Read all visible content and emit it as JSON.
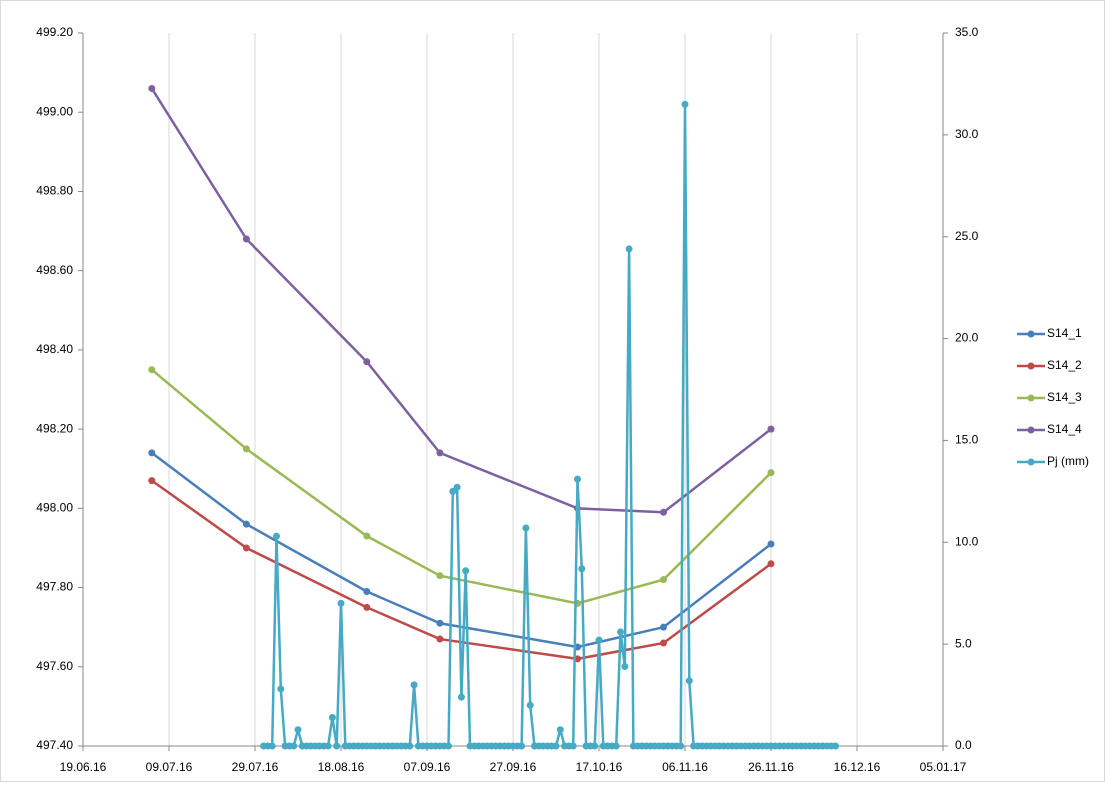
{
  "chart_data": {
    "type": "line",
    "xlim": [
      "2016-06-19",
      "2017-01-05"
    ],
    "xticks": [
      {
        "value": "2016-06-19",
        "label": "19.06.16"
      },
      {
        "value": "2016-07-09",
        "label": "09.07.16"
      },
      {
        "value": "2016-07-29",
        "label": "29.07.16"
      },
      {
        "value": "2016-08-18",
        "label": "18.08.16"
      },
      {
        "value": "2016-09-07",
        "label": "07.09.16"
      },
      {
        "value": "2016-09-27",
        "label": "27.09.16"
      },
      {
        "value": "2016-10-17",
        "label": "17.10.16"
      },
      {
        "value": "2016-11-06",
        "label": "06.11.16"
      },
      {
        "value": "2016-11-26",
        "label": "26.11.16"
      },
      {
        "value": "2016-12-16",
        "label": "16.12.16"
      },
      {
        "value": "2017-01-05",
        "label": "05.01.17"
      }
    ],
    "ylim": [
      497.4,
      499.2
    ],
    "yticks": [
      {
        "value": 497.4,
        "label": "497.40"
      },
      {
        "value": 497.6,
        "label": "497.60"
      },
      {
        "value": 497.8,
        "label": "497.80"
      },
      {
        "value": 498,
        "label": "498.00"
      },
      {
        "value": 498.2,
        "label": "498.20"
      },
      {
        "value": 498.4,
        "label": "498.40"
      },
      {
        "value": 498.6,
        "label": "498.60"
      },
      {
        "value": 498.8,
        "label": "498.80"
      },
      {
        "value": 499,
        "label": "499.00"
      },
      {
        "value": 499.2,
        "label": "499.20"
      }
    ],
    "y2lim": [
      0,
      35
    ],
    "y2ticks": [
      {
        "value": 0,
        "label": "0.0"
      },
      {
        "value": 5,
        "label": "5.0"
      },
      {
        "value": 10,
        "label": "10.0"
      },
      {
        "value": 15,
        "label": "15.0"
      },
      {
        "value": 20,
        "label": "20.0"
      },
      {
        "value": 25,
        "label": "25.0"
      },
      {
        "value": 30,
        "label": "30.0"
      },
      {
        "value": 35,
        "label": "35.0"
      }
    ],
    "grid": "x",
    "legend": "right",
    "series": [
      {
        "name": "S14_1",
        "color": "#4a7ebb",
        "x": [
          "2016-07-05",
          "2016-07-27",
          "2016-08-24",
          "2016-09-10",
          "2016-10-12",
          "2016-11-01",
          "2016-11-26"
        ],
        "values": [
          498.14,
          497.96,
          497.79,
          497.71,
          497.65,
          497.7,
          497.91
        ]
      },
      {
        "name": "S14_2",
        "color": "#be4b48",
        "x": [
          "2016-07-05",
          "2016-07-27",
          "2016-08-24",
          "2016-09-10",
          "2016-10-12",
          "2016-11-01",
          "2016-11-26"
        ],
        "values": [
          498.07,
          497.9,
          497.75,
          497.67,
          497.62,
          497.66,
          497.86
        ]
      },
      {
        "name": "S14_3",
        "color": "#98b954",
        "x": [
          "2016-07-05",
          "2016-07-27",
          "2016-08-24",
          "2016-09-10",
          "2016-10-12",
          "2016-11-01",
          "2016-11-26"
        ],
        "values": [
          498.35,
          498.15,
          497.93,
          497.83,
          497.76,
          497.82,
          498.09
        ]
      },
      {
        "name": "S14_4",
        "color": "#7d60a0",
        "x": [
          "2016-07-05",
          "2016-07-27",
          "2016-08-24",
          "2016-09-10",
          "2016-10-12",
          "2016-11-01",
          "2016-11-26"
        ],
        "values": [
          499.06,
          498.68,
          498.37,
          498.14,
          498.0,
          497.99,
          498.2
        ]
      },
      {
        "name": "Pj (mm)",
        "color": "#46aac5",
        "axis": "y2",
        "x": [
          "2016-07-31",
          "2016-08-01",
          "2016-08-02",
          "2016-08-03",
          "2016-08-04",
          "2016-08-05",
          "2016-08-06",
          "2016-08-07",
          "2016-08-08",
          "2016-08-09",
          "2016-08-10",
          "2016-08-11",
          "2016-08-12",
          "2016-08-13",
          "2016-08-14",
          "2016-08-15",
          "2016-08-16",
          "2016-08-17",
          "2016-08-18",
          "2016-08-19",
          "2016-08-20",
          "2016-08-21",
          "2016-08-22",
          "2016-08-23",
          "2016-08-24",
          "2016-08-25",
          "2016-08-26",
          "2016-08-27",
          "2016-08-28",
          "2016-08-29",
          "2016-08-30",
          "2016-08-31",
          "2016-09-01",
          "2016-09-02",
          "2016-09-03",
          "2016-09-04",
          "2016-09-05",
          "2016-09-06",
          "2016-09-07",
          "2016-09-08",
          "2016-09-09",
          "2016-09-10",
          "2016-09-11",
          "2016-09-12",
          "2016-09-13",
          "2016-09-14",
          "2016-09-15",
          "2016-09-16",
          "2016-09-17",
          "2016-09-18",
          "2016-09-19",
          "2016-09-20",
          "2016-09-21",
          "2016-09-22",
          "2016-09-23",
          "2016-09-24",
          "2016-09-25",
          "2016-09-26",
          "2016-09-27",
          "2016-09-28",
          "2016-09-29",
          "2016-09-30",
          "2016-10-01",
          "2016-10-02",
          "2016-10-03",
          "2016-10-04",
          "2016-10-05",
          "2016-10-06",
          "2016-10-07",
          "2016-10-08",
          "2016-10-09",
          "2016-10-10",
          "2016-10-11",
          "2016-10-12",
          "2016-10-13",
          "2016-10-14",
          "2016-10-15",
          "2016-10-16",
          "2016-10-17",
          "2016-10-18",
          "2016-10-19",
          "2016-10-20",
          "2016-10-21",
          "2016-10-22",
          "2016-10-23",
          "2016-10-24",
          "2016-10-25",
          "2016-10-26",
          "2016-10-27",
          "2016-10-28",
          "2016-10-29",
          "2016-10-30",
          "2016-10-31",
          "2016-11-01",
          "2016-11-02",
          "2016-11-03",
          "2016-11-04",
          "2016-11-05",
          "2016-11-06",
          "2016-11-07",
          "2016-11-08",
          "2016-11-09",
          "2016-11-10",
          "2016-11-11",
          "2016-11-12",
          "2016-11-13",
          "2016-11-14",
          "2016-11-15",
          "2016-11-16",
          "2016-11-17",
          "2016-11-18",
          "2016-11-19",
          "2016-11-20",
          "2016-11-21",
          "2016-11-22",
          "2016-11-23",
          "2016-11-24",
          "2016-11-25",
          "2016-11-26",
          "2016-11-27",
          "2016-11-28",
          "2016-11-29",
          "2016-11-30",
          "2016-12-01",
          "2016-12-02",
          "2016-12-03",
          "2016-12-04",
          "2016-12-05",
          "2016-12-06",
          "2016-12-07",
          "2016-12-08",
          "2016-12-09",
          "2016-12-10",
          "2016-12-11"
        ],
        "values": [
          0,
          0,
          0,
          10.3,
          2.8,
          0,
          0,
          0,
          0.8,
          0,
          0,
          0,
          0,
          0,
          0,
          0,
          1.4,
          0,
          7,
          0,
          0,
          0,
          0,
          0,
          0,
          0,
          0,
          0,
          0,
          0,
          0,
          0,
          0,
          0,
          0,
          3,
          0,
          0,
          0,
          0,
          0,
          0,
          0,
          0,
          12.5,
          12.7,
          2.4,
          8.6,
          0,
          0,
          0,
          0,
          0,
          0,
          0,
          0,
          0,
          0,
          0,
          0,
          0,
          10.7,
          2,
          0,
          0,
          0,
          0,
          0,
          0,
          0.8,
          0,
          0,
          0,
          13.1,
          8.7,
          0,
          0,
          0,
          5.2,
          0,
          0,
          0,
          0,
          5.6,
          3.9,
          24.4,
          0,
          0,
          0,
          0,
          0,
          0,
          0,
          0,
          0,
          0,
          0,
          0,
          31.5,
          3.2,
          0,
          0,
          0,
          0,
          0,
          0,
          0,
          0,
          0,
          0,
          0,
          0,
          0,
          0,
          0,
          0,
          0,
          0,
          0,
          0,
          0,
          0,
          0,
          0,
          0,
          0,
          0,
          0,
          0,
          0,
          0,
          0,
          0,
          0
        ]
      }
    ]
  }
}
